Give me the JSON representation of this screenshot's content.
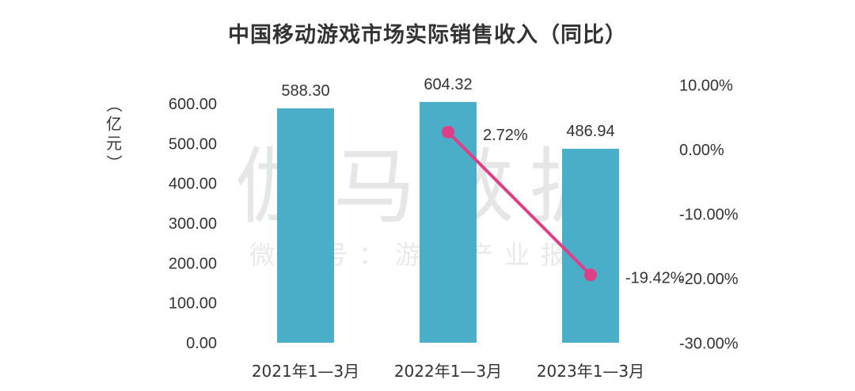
{
  "chart_data": {
    "type": "bar",
    "title": "中国移动游戏市场实际销售收入（同比）",
    "categories": [
      "2021年1—3月",
      "2022年1—3月",
      "2023年1—3月"
    ],
    "series": [
      {
        "type": "bar",
        "axis": "left",
        "values": [
          588.3,
          604.32,
          486.94
        ],
        "labels": [
          "588.30",
          "604.32",
          "486.94"
        ],
        "color": "#4aaec8"
      },
      {
        "type": "line",
        "axis": "right",
        "values": [
          null,
          2.72,
          -19.42
        ],
        "labels": [
          "",
          "2.72%",
          "-19.42%"
        ],
        "color": "#de3f86"
      }
    ],
    "ylabel_left": "（亿元）",
    "ylabel_left_chars": [
      "（",
      "亿",
      "元",
      "）"
    ],
    "y_left_range": [
      0,
      600
    ],
    "y_left_ticks": [
      0,
      100,
      200,
      300,
      400,
      500,
      600
    ],
    "y_left_tick_labels": [
      "0.00",
      "100.00",
      "200.00",
      "300.00",
      "400.00",
      "500.00",
      "600.00"
    ],
    "y_right_range": [
      -30,
      10
    ],
    "y_right_ticks": [
      10,
      0,
      -10,
      -20,
      -30
    ],
    "y_right_tick_labels": [
      "10.00%",
      "0.00%",
      "-10.00%",
      "-20.00%",
      "-30.00%"
    ],
    "grid": false,
    "legend": "none"
  },
  "watermark": {
    "main": "伽马数据",
    "sub": "微信号：游戏产业报告"
  }
}
